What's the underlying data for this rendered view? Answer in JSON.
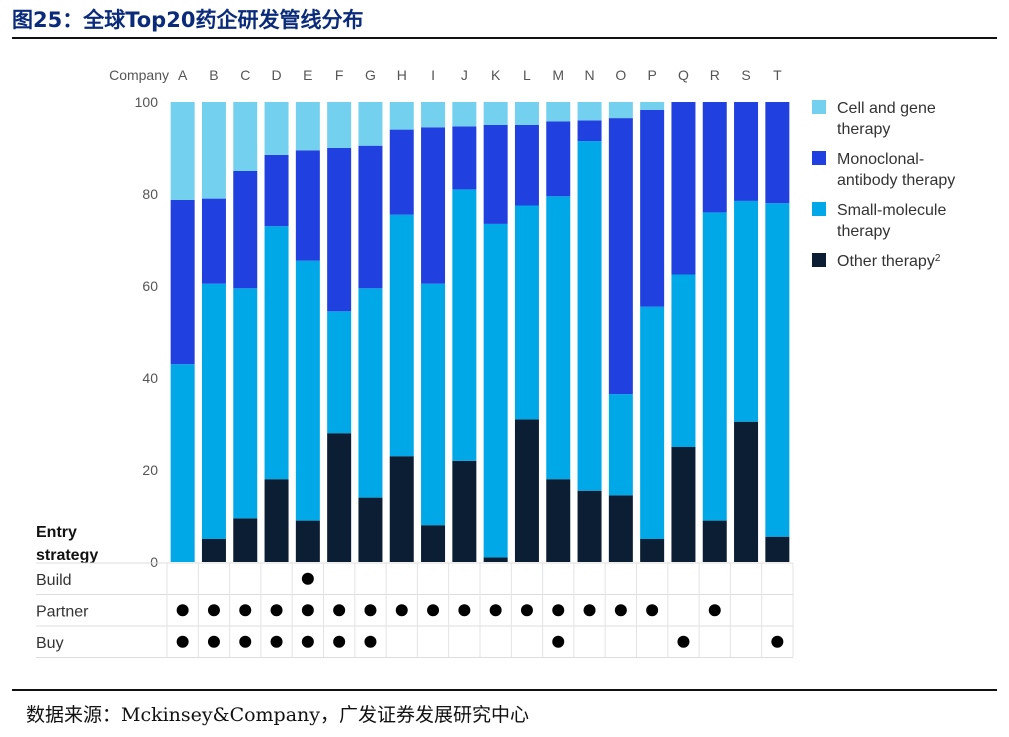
{
  "figure": {
    "title": "图25：全球Top20药企研发管线分布",
    "source": "数据来源：Mckinsey&Company，广发证券发展研究中心"
  },
  "chart_data": {
    "type": "bar",
    "stacked": true,
    "company_header": "Company",
    "categories": [
      "A",
      "B",
      "C",
      "D",
      "E",
      "F",
      "G",
      "H",
      "I",
      "J",
      "K",
      "L",
      "M",
      "N",
      "O",
      "P",
      "Q",
      "R",
      "S",
      "T"
    ],
    "ylim": [
      0,
      100
    ],
    "yticks": [
      "0",
      "20",
      "40",
      "60",
      "80",
      "100"
    ],
    "legend_position": "right",
    "series": [
      {
        "name": "Other therapy",
        "sup": "2",
        "color": "#0b1e33",
        "values": [
          0,
          5,
          9.5,
          18,
          9,
          28,
          14,
          23,
          8,
          22,
          1,
          31,
          18,
          15.5,
          14.5,
          5,
          25,
          9,
          30.5,
          5.5
        ]
      },
      {
        "name": "Small-molecule therapy",
        "color": "#00a8e8",
        "values": [
          43,
          55.5,
          50,
          55,
          56.5,
          26.5,
          45.5,
          52.5,
          52.5,
          59,
          72.5,
          46.5,
          61.5,
          76,
          22,
          50.5,
          37.5,
          67,
          48,
          72.5
        ]
      },
      {
        "name": "Monoclonal-antibody therapy",
        "color": "#2140e0",
        "values": [
          35.7,
          18.5,
          25.5,
          15.5,
          24,
          35.5,
          31,
          18.5,
          34,
          13.7,
          21.5,
          17.5,
          16.3,
          4.5,
          60,
          42.8,
          37.5,
          24,
          21.5,
          22
        ]
      },
      {
        "name": "Cell and gene therapy",
        "color": "#73d0ee",
        "values": [
          21.3,
          21,
          15,
          11.5,
          10.5,
          10,
          9.5,
          6,
          5.5,
          5.3,
          5,
          5,
          4.2,
          4,
          3.5,
          1.7,
          0,
          0,
          0,
          0
        ]
      }
    ],
    "entry_strategy": {
      "heading": "Entry strategy",
      "rows": [
        {
          "label": "Build",
          "marks": [
            false,
            false,
            false,
            false,
            true,
            false,
            false,
            false,
            false,
            false,
            false,
            false,
            false,
            false,
            false,
            false,
            false,
            false,
            false,
            false
          ]
        },
        {
          "label": "Partner",
          "marks": [
            true,
            true,
            true,
            true,
            true,
            true,
            true,
            true,
            true,
            true,
            true,
            true,
            true,
            true,
            true,
            true,
            false,
            true,
            false,
            false
          ]
        },
        {
          "label": "Buy",
          "marks": [
            true,
            true,
            true,
            true,
            true,
            true,
            true,
            false,
            false,
            false,
            false,
            false,
            true,
            false,
            false,
            false,
            true,
            false,
            false,
            true
          ]
        }
      ]
    }
  }
}
